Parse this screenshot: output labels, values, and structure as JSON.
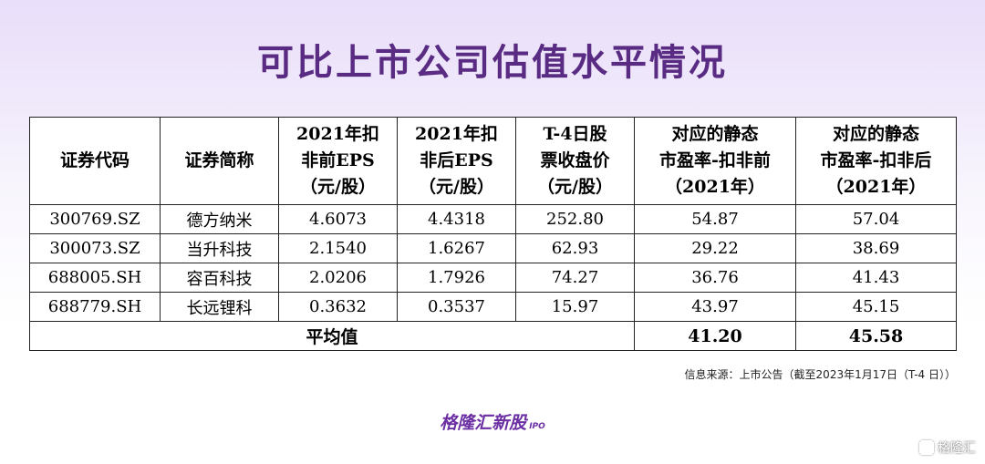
{
  "title": "可比上市公司估值水平情况",
  "table": {
    "headers": [
      [
        "证券代码"
      ],
      [
        "证券简称"
      ],
      [
        "2021年扣",
        "非前EPS",
        "（元/股）"
      ],
      [
        "2021年扣",
        "非后EPS",
        "（元/股）"
      ],
      [
        "T-4日股",
        "票收盘价",
        "（元/股）"
      ],
      [
        "对应的静态",
        "市盈率-扣非前",
        "（2021年）"
      ],
      [
        "对应的静态",
        "市盈率-扣非后",
        "（2021年）"
      ]
    ],
    "rows": [
      [
        "300769.SZ",
        "德方纳米",
        "4.6073",
        "4.4318",
        "252.80",
        "54.87",
        "57.04"
      ],
      [
        "300073.SZ",
        "当升科技",
        "2.1540",
        "1.6267",
        "62.93",
        "29.22",
        "38.69"
      ],
      [
        "688005.SH",
        "容百科技",
        "2.0206",
        "1.7926",
        "74.27",
        "36.76",
        "41.43"
      ],
      [
        "688779.SH",
        "长远锂科",
        "0.3632",
        "0.3537",
        "15.97",
        "43.97",
        "45.15"
      ]
    ],
    "average": {
      "label": "平均值",
      "pe_before": "41.20",
      "pe_after": "45.58"
    }
  },
  "watermark": {
    "text": "格隆汇新股",
    "suffix": "IPO"
  },
  "source": "信息来源：上市公告（截至2023年1月17日（T-4 日））",
  "logo": {
    "text": "格隆汇新股",
    "suffix": "IPO"
  },
  "corner_mark": {
    "icon": "gelonghui-logo-icon",
    "text": "格隆汇"
  },
  "colors": {
    "title": "#5a2b83",
    "logo": "#6b2fa3"
  }
}
